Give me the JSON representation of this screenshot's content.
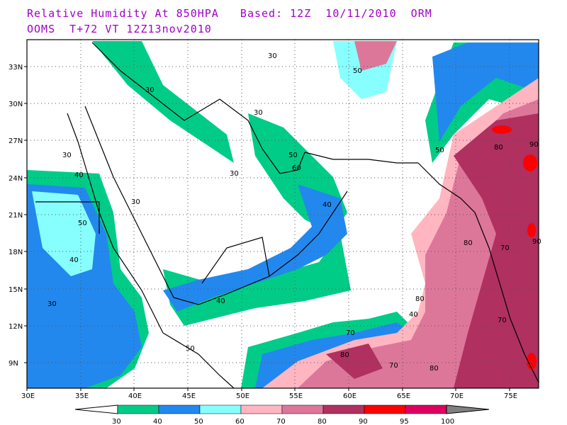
{
  "title": {
    "line1": "Relative Humidity At 850HPA   Based: 12Z  10/11/2010  ORM",
    "line2": "OOMS  T+72 VT 12Z13nov2010"
  },
  "axes": {
    "lat_labels": [
      "33N",
      "30N",
      "27N",
      "24N",
      "21N",
      "18N",
      "15N",
      "12N",
      "9N"
    ],
    "lon_labels": [
      "30E",
      "35E",
      "40E",
      "45E",
      "50E",
      "55E",
      "60E",
      "65E",
      "70E",
      "75E"
    ]
  },
  "legend": {
    "ticks": [
      "30",
      "40",
      "50",
      "60",
      "70",
      "80",
      "90",
      "95",
      "100"
    ],
    "colors": [
      "#00cc88",
      "#2288ee",
      "#88ffff",
      "#ffb6c1",
      "#dd7799",
      "#b03060",
      "#ff0000",
      "#dd0060",
      "#808080"
    ]
  },
  "contour_labels": [
    {
      "v": "30"
    },
    {
      "v": "30"
    },
    {
      "v": "30"
    },
    {
      "v": "30"
    },
    {
      "v": "30"
    },
    {
      "v": "30"
    },
    {
      "v": "30"
    },
    {
      "v": "40"
    },
    {
      "v": "40"
    },
    {
      "v": "40"
    },
    {
      "v": "40"
    },
    {
      "v": "40"
    },
    {
      "v": "50"
    },
    {
      "v": "50"
    },
    {
      "v": "50"
    },
    {
      "v": "50"
    },
    {
      "v": "50"
    },
    {
      "v": "60"
    },
    {
      "v": "70"
    },
    {
      "v": "70"
    },
    {
      "v": "70"
    },
    {
      "v": "70"
    },
    {
      "v": "80"
    },
    {
      "v": "80"
    },
    {
      "v": "80"
    },
    {
      "v": "80"
    },
    {
      "v": "80"
    },
    {
      "v": "90"
    },
    {
      "v": "90"
    }
  ]
}
